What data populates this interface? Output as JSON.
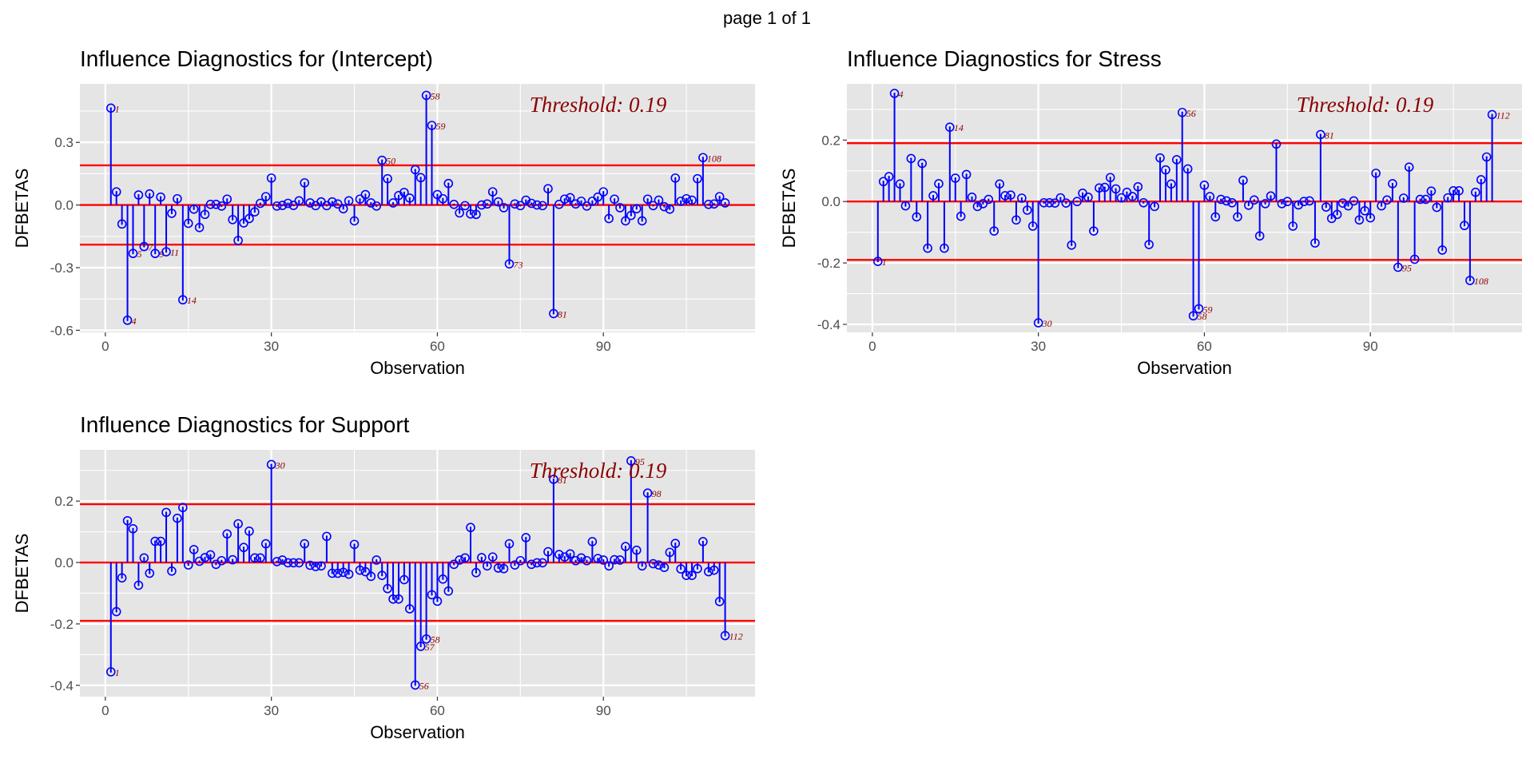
{
  "page_label": "page 1 of 1",
  "colors": {
    "panel_bg": "#E5E5E5",
    "grid": "#FFFFFF",
    "stem": "#0000FF",
    "threshold_line": "#FF0000",
    "label": "#8B0000"
  },
  "chart_data": [
    {
      "type": "stem",
      "title": "Influence Diagnostics for (Intercept)",
      "xlabel": "Observation",
      "ylabel": "DFBETAS",
      "threshold": 0.19,
      "threshold_text": "Threshold: 0.19",
      "xlim": [
        -4.6,
        117.4
      ],
      "ylim": [
        -0.61,
        0.58
      ],
      "xticks": [
        0,
        30,
        60,
        90
      ],
      "yticks": [
        -0.6,
        -0.3,
        0.0,
        0.3
      ],
      "ytick_labels": [
        "-0.6",
        "-0.3",
        "0.0",
        "0.3"
      ],
      "values": [
        0.464,
        0.063,
        -0.091,
        -0.552,
        -0.232,
        0.048,
        -0.199,
        0.053,
        -0.232,
        0.038,
        -0.224,
        -0.04,
        0.03,
        -0.454,
        -0.088,
        -0.02,
        -0.108,
        -0.045,
        0.003,
        0.003,
        -0.005,
        0.028,
        -0.07,
        -0.17,
        -0.086,
        -0.065,
        -0.033,
        0.008,
        0.04,
        0.129,
        -0.005,
        -0.002,
        0.008,
        -0.002,
        0.02,
        0.106,
        0.01,
        -0.003,
        0.015,
        -0.003,
        0.015,
        0.005,
        -0.018,
        0.02,
        -0.076,
        0.028,
        0.05,
        0.01,
        -0.005,
        0.214,
        0.126,
        0.01,
        0.045,
        0.06,
        0.033,
        0.169,
        0.131,
        0.525,
        0.381,
        0.05,
        0.03,
        0.103,
        0.003,
        -0.038,
        -0.003,
        -0.043,
        -0.045,
        0.0,
        0.005,
        0.063,
        0.015,
        -0.013,
        -0.282,
        0.005,
        -0.003,
        0.023,
        0.008,
        0.0,
        -0.003,
        0.078,
        -0.52,
        0.003,
        0.028,
        0.035,
        0.005,
        0.018,
        -0.005,
        0.018,
        0.038,
        0.063,
        -0.065,
        0.028,
        -0.013,
        -0.076,
        -0.05,
        -0.018,
        -0.076,
        0.028,
        -0.003,
        0.023,
        -0.008,
        -0.02,
        0.129,
        0.018,
        0.03,
        0.023,
        0.126,
        0.227,
        0.003,
        0.005,
        0.04,
        0.01
      ]
    },
    {
      "type": "stem",
      "title": "Influence Diagnostics for Stress",
      "xlabel": "Observation",
      "ylabel": "DFBETAS",
      "threshold": 0.19,
      "threshold_text": "Threshold: 0.19",
      "xlim": [
        -4.6,
        117.4
      ],
      "ylim": [
        -0.426,
        0.383
      ],
      "xticks": [
        0,
        30,
        60,
        90
      ],
      "yticks": [
        -0.4,
        -0.2,
        0.0,
        0.2
      ],
      "ytick_labels": [
        "-0.4",
        "-0.2",
        "0.0",
        "0.2"
      ],
      "values": [
        -0.195,
        0.065,
        0.081,
        0.352,
        0.057,
        -0.014,
        0.14,
        -0.05,
        0.124,
        -0.152,
        0.019,
        0.058,
        -0.152,
        0.242,
        0.076,
        -0.048,
        0.088,
        0.014,
        -0.016,
        -0.007,
        0.007,
        -0.096,
        0.057,
        0.019,
        0.021,
        -0.06,
        0.011,
        -0.028,
        -0.08,
        -0.395,
        -0.004,
        -0.004,
        -0.005,
        0.012,
        -0.005,
        -0.142,
        0.0,
        0.027,
        0.014,
        -0.096,
        0.044,
        0.046,
        0.078,
        0.041,
        0.012,
        0.03,
        0.016,
        0.048,
        -0.004,
        -0.14,
        -0.016,
        0.142,
        0.103,
        0.057,
        0.136,
        0.29,
        0.106,
        -0.372,
        -0.349,
        0.053,
        0.016,
        -0.05,
        0.007,
        0.002,
        -0.004,
        -0.05,
        0.069,
        -0.012,
        0.005,
        -0.112,
        -0.007,
        0.018,
        0.187,
        -0.007,
        0.0,
        -0.08,
        -0.011,
        0.0,
        0.002,
        -0.135,
        0.218,
        -0.018,
        -0.055,
        -0.042,
        -0.005,
        -0.014,
        0.002,
        -0.06,
        -0.03,
        -0.053,
        0.092,
        -0.014,
        0.005,
        0.058,
        -0.214,
        0.011,
        0.112,
        -0.188,
        0.007,
        0.007,
        0.034,
        -0.019,
        -0.158,
        0.012,
        0.035,
        0.035,
        -0.078,
        -0.257,
        0.03,
        0.071,
        0.145,
        0.283
      ]
    },
    {
      "type": "stem",
      "title": "Influence Diagnostics for Support",
      "xlabel": "Observation",
      "ylabel": "DFBETAS",
      "threshold": 0.19,
      "threshold_text": "Threshold: 0.19",
      "xlim": [
        -4.6,
        117.4
      ],
      "ylim": [
        -0.437,
        0.367
      ],
      "xticks": [
        0,
        30,
        60,
        90
      ],
      "yticks": [
        -0.4,
        -0.2,
        0.0,
        0.2
      ],
      "ytick_labels": [
        "-0.4",
        "-0.2",
        "0.0",
        "0.2"
      ],
      "values": [
        -0.356,
        -0.16,
        -0.05,
        0.136,
        0.11,
        -0.074,
        0.015,
        -0.035,
        0.069,
        0.069,
        0.163,
        -0.028,
        0.144,
        0.179,
        -0.008,
        0.042,
        0.004,
        0.016,
        0.025,
        -0.006,
        0.006,
        0.093,
        0.009,
        0.126,
        0.049,
        0.102,
        0.015,
        0.015,
        0.061,
        0.319,
        0.003,
        0.008,
        -0.001,
        -0.001,
        -0.001,
        0.061,
        -0.009,
        -0.013,
        -0.011,
        0.085,
        -0.035,
        -0.035,
        -0.032,
        -0.038,
        0.059,
        -0.025,
        -0.03,
        -0.045,
        0.008,
        -0.042,
        -0.085,
        -0.119,
        -0.119,
        -0.056,
        -0.151,
        -0.399,
        -0.273,
        -0.249,
        -0.105,
        -0.126,
        -0.054,
        -0.093,
        -0.006,
        0.008,
        0.015,
        0.114,
        -0.033,
        0.016,
        -0.011,
        0.018,
        -0.018,
        -0.02,
        0.061,
        -0.008,
        0.006,
        0.081,
        -0.006,
        -0.001,
        -0.001,
        0.035,
        0.271,
        0.026,
        0.018,
        0.028,
        0.006,
        0.015,
        0.006,
        0.068,
        0.013,
        0.008,
        -0.011,
        0.009,
        0.008,
        0.052,
        0.331,
        0.04,
        -0.011,
        0.226,
        -0.004,
        -0.008,
        -0.016,
        0.033,
        0.062,
        -0.021,
        -0.042,
        -0.042,
        -0.02,
        0.068,
        -0.03,
        -0.025,
        -0.127,
        -0.238
      ]
    }
  ]
}
